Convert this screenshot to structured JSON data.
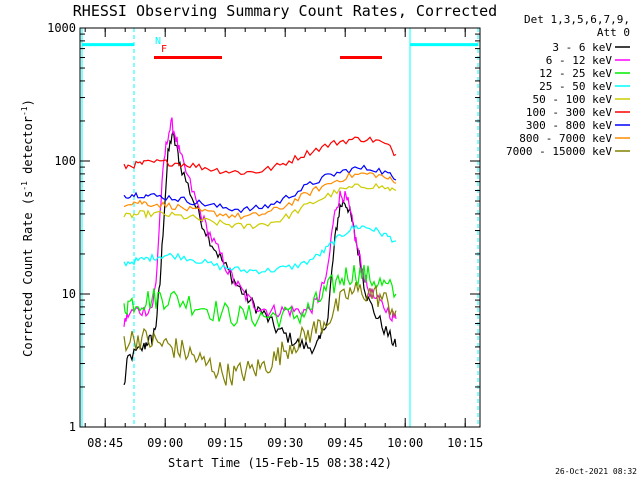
{
  "chart_data": {
    "type": "line",
    "title": "RHESSI Observing Summary Count Rates, Corrected",
    "xlabel": "Start Time (15-Feb-15 08:38:42)",
    "ylabel": "Corrected Count Rate (s",
    "ylabel_sup1": "-1",
    "ylabel_mid": " detector",
    "ylabel_sup2": "-1",
    "ylabel_end": ")",
    "x_unit": "minutes after 08:38:42",
    "xlim": [
      0,
      100
    ],
    "ylim": [
      1,
      1000
    ],
    "yscale": "log",
    "x_ticks": [
      {
        "t": 6.3,
        "label": "08:45"
      },
      {
        "t": 21.3,
        "label": "09:00"
      },
      {
        "t": 36.3,
        "label": "09:15"
      },
      {
        "t": 51.3,
        "label": "09:30"
      },
      {
        "t": 66.3,
        "label": "09:45"
      },
      {
        "t": 81.3,
        "label": "10:00"
      },
      {
        "t": 96.3,
        "label": "10:15"
      }
    ],
    "y_ticks": [
      {
        "v": 1,
        "label": "1"
      },
      {
        "v": 10,
        "label": "10"
      },
      {
        "v": 100,
        "label": "100"
      },
      {
        "v": 1000,
        "label": "1000"
      }
    ],
    "legend_header_1": "Det 1,3,5,6,7,9,",
    "legend_header_2": "Att 0",
    "footer_date": "26-Oct-2021 08:32",
    "series": [
      {
        "name": "3 - 6 keV",
        "color": "#000000",
        "points": [
          [
            11,
            2
          ],
          [
            12,
            3.3
          ],
          [
            14,
            3.6
          ],
          [
            16,
            4
          ],
          [
            17,
            4.5
          ],
          [
            18,
            4.5
          ],
          [
            19,
            6
          ],
          [
            20,
            12
          ],
          [
            21,
            40
          ],
          [
            22,
            110
          ],
          [
            23,
            160
          ],
          [
            24,
            130
          ],
          [
            25,
            95
          ],
          [
            27,
            65
          ],
          [
            29,
            45
          ],
          [
            31,
            32
          ],
          [
            33,
            24
          ],
          [
            35,
            19
          ],
          [
            37,
            15
          ],
          [
            39,
            12
          ],
          [
            41,
            10
          ],
          [
            43,
            8.5
          ],
          [
            45,
            7.5
          ],
          [
            47,
            6.5
          ],
          [
            49,
            5.5
          ],
          [
            51,
            5
          ],
          [
            53,
            4.5
          ],
          [
            55,
            4.2
          ],
          [
            57,
            4
          ],
          [
            59,
            4
          ],
          [
            60,
            4.5
          ],
          [
            62,
            7
          ],
          [
            63,
            15
          ],
          [
            64,
            30
          ],
          [
            65,
            45
          ],
          [
            66,
            50
          ],
          [
            67,
            45
          ],
          [
            68,
            35
          ],
          [
            69,
            25
          ],
          [
            70,
            18
          ],
          [
            71,
            12
          ],
          [
            72,
            9
          ],
          [
            74,
            7
          ],
          [
            76,
            5.5
          ],
          [
            78,
            4.5
          ],
          [
            79,
            4
          ]
        ]
      },
      {
        "name": "6 - 12 keV",
        "color": "#ff00ff",
        "points": [
          [
            11,
            6
          ],
          [
            12,
            7
          ],
          [
            14,
            7.5
          ],
          [
            16,
            7.5
          ],
          [
            18,
            8
          ],
          [
            19,
            12
          ],
          [
            20,
            40
          ],
          [
            21,
            100
          ],
          [
            22,
            160
          ],
          [
            23,
            190
          ],
          [
            24,
            150
          ],
          [
            25,
            110
          ],
          [
            27,
            75
          ],
          [
            29,
            50
          ],
          [
            31,
            35
          ],
          [
            33,
            26
          ],
          [
            35,
            20
          ],
          [
            37,
            15
          ],
          [
            39,
            12
          ],
          [
            41,
            10
          ],
          [
            43,
            8.5
          ],
          [
            45,
            8
          ],
          [
            47,
            7.5
          ],
          [
            49,
            7.5
          ],
          [
            51,
            7.5
          ],
          [
            53,
            7.5
          ],
          [
            55,
            7.5
          ],
          [
            57,
            7.5
          ],
          [
            59,
            8.5
          ],
          [
            60,
            10
          ],
          [
            62,
            15
          ],
          [
            63,
            30
          ],
          [
            64,
            45
          ],
          [
            65,
            55
          ],
          [
            66,
            55
          ],
          [
            67,
            48
          ],
          [
            68,
            35
          ],
          [
            69,
            25
          ],
          [
            70,
            18
          ],
          [
            71,
            14
          ],
          [
            72,
            11
          ],
          [
            74,
            9
          ],
          [
            76,
            8
          ],
          [
            78,
            7
          ],
          [
            79,
            6.5
          ]
        ]
      },
      {
        "name": "12 - 25 keV",
        "color": "#00ee00",
        "points": [
          [
            11,
            8
          ],
          [
            12,
            8.5
          ],
          [
            14,
            8.8
          ],
          [
            16,
            9
          ],
          [
            18,
            9.2
          ],
          [
            20,
            9.5
          ],
          [
            22,
            9.3
          ],
          [
            25,
            9
          ],
          [
            28,
            8.5
          ],
          [
            31,
            8
          ],
          [
            34,
            7.5
          ],
          [
            37,
            7
          ],
          [
            40,
            6.8
          ],
          [
            43,
            6.8
          ],
          [
            46,
            6.8
          ],
          [
            49,
            6.8
          ],
          [
            52,
            6.8
          ],
          [
            55,
            7
          ],
          [
            57,
            7.5
          ],
          [
            59,
            8.5
          ],
          [
            61,
            10
          ],
          [
            63,
            11.5
          ],
          [
            65,
            13
          ],
          [
            67,
            14
          ],
          [
            69,
            14.5
          ],
          [
            71,
            14
          ],
          [
            73,
            13
          ],
          [
            75,
            12
          ],
          [
            77,
            11
          ],
          [
            79,
            10
          ]
        ]
      },
      {
        "name": "25 - 50 keV",
        "color": "#00ffff",
        "points": [
          [
            11,
            17
          ],
          [
            13,
            17.5
          ],
          [
            15,
            18
          ],
          [
            17,
            18.5
          ],
          [
            19,
            19
          ],
          [
            21,
            19.5
          ],
          [
            23,
            19.5
          ],
          [
            26,
            19
          ],
          [
            29,
            18
          ],
          [
            32,
            17
          ],
          [
            35,
            16
          ],
          [
            38,
            15.5
          ],
          [
            41,
            15
          ],
          [
            44,
            15
          ],
          [
            47,
            15
          ],
          [
            50,
            15.5
          ],
          [
            53,
            16
          ],
          [
            56,
            17
          ],
          [
            59,
            19
          ],
          [
            61,
            21
          ],
          [
            63,
            24
          ],
          [
            65,
            27
          ],
          [
            67,
            30
          ],
          [
            69,
            32
          ],
          [
            71,
            32
          ],
          [
            73,
            31
          ],
          [
            75,
            29
          ],
          [
            77,
            27
          ],
          [
            79,
            25
          ]
        ]
      },
      {
        "name": "50 - 100 keV",
        "color": "#cccc00",
        "points": [
          [
            11,
            38
          ],
          [
            13,
            39
          ],
          [
            15,
            40
          ],
          [
            17,
            40
          ],
          [
            20,
            40
          ],
          [
            23,
            39
          ],
          [
            26,
            38
          ],
          [
            29,
            37
          ],
          [
            32,
            35
          ],
          [
            35,
            34
          ],
          [
            38,
            33
          ],
          [
            41,
            32
          ],
          [
            44,
            33
          ],
          [
            47,
            34
          ],
          [
            50,
            36
          ],
          [
            53,
            40
          ],
          [
            56,
            45
          ],
          [
            59,
            50
          ],
          [
            62,
            55
          ],
          [
            65,
            60
          ],
          [
            68,
            63
          ],
          [
            71,
            65
          ],
          [
            74,
            65
          ],
          [
            77,
            62
          ],
          [
            79,
            60
          ]
        ]
      },
      {
        "name": "100 - 300 keV",
        "color": "#ff0000",
        "points": [
          [
            11,
            90
          ],
          [
            13,
            93
          ],
          [
            15,
            95
          ],
          [
            17,
            97
          ],
          [
            20,
            98
          ],
          [
            23,
            97
          ],
          [
            26,
            95
          ],
          [
            29,
            92
          ],
          [
            32,
            88
          ],
          [
            35,
            85
          ],
          [
            38,
            83
          ],
          [
            41,
            82
          ],
          [
            44,
            83
          ],
          [
            47,
            87
          ],
          [
            50,
            93
          ],
          [
            53,
            102
          ],
          [
            56,
            112
          ],
          [
            59,
            122
          ],
          [
            62,
            132
          ],
          [
            65,
            140
          ],
          [
            68,
            145
          ],
          [
            71,
            147
          ],
          [
            74,
            143
          ],
          [
            77,
            130
          ],
          [
            79,
            112
          ]
        ]
      },
      {
        "name": "300 - 800 keV",
        "color": "#0000ff",
        "points": [
          [
            11,
            55
          ],
          [
            13,
            56
          ],
          [
            15,
            56
          ],
          [
            17,
            55
          ],
          [
            20,
            54
          ],
          [
            23,
            53
          ],
          [
            26,
            51
          ],
          [
            29,
            49
          ],
          [
            32,
            47
          ],
          [
            35,
            45
          ],
          [
            38,
            44
          ],
          [
            41,
            43
          ],
          [
            44,
            44
          ],
          [
            47,
            46
          ],
          [
            50,
            50
          ],
          [
            53,
            56
          ],
          [
            56,
            63
          ],
          [
            59,
            70
          ],
          [
            62,
            77
          ],
          [
            65,
            82
          ],
          [
            68,
            87
          ],
          [
            71,
            88
          ],
          [
            74,
            87
          ],
          [
            77,
            80
          ],
          [
            79,
            72
          ]
        ]
      },
      {
        "name": "800 - 7000 keV",
        "color": "#ff8c00",
        "points": [
          [
            11,
            48
          ],
          [
            13,
            49
          ],
          [
            15,
            49
          ],
          [
            17,
            48
          ],
          [
            20,
            47
          ],
          [
            23,
            46
          ],
          [
            26,
            44
          ],
          [
            29,
            42
          ],
          [
            32,
            41
          ],
          [
            35,
            40
          ],
          [
            38,
            39
          ],
          [
            41,
            38
          ],
          [
            44,
            39
          ],
          [
            47,
            41
          ],
          [
            50,
            44
          ],
          [
            53,
            49
          ],
          [
            56,
            55
          ],
          [
            59,
            61
          ],
          [
            62,
            67
          ],
          [
            65,
            73
          ],
          [
            68,
            78
          ],
          [
            71,
            80
          ],
          [
            74,
            79
          ],
          [
            77,
            74
          ],
          [
            79,
            68
          ]
        ]
      },
      {
        "name": "7000 - 15000 keV",
        "color": "#808000",
        "points": [
          [
            11,
            4.5
          ],
          [
            13,
            4.6
          ],
          [
            15,
            4.7
          ],
          [
            17,
            4.5
          ],
          [
            19,
            4.3
          ],
          [
            21,
            4.2
          ],
          [
            23,
            4.0
          ],
          [
            25,
            3.8
          ],
          [
            27,
            3.6
          ],
          [
            29,
            3.3
          ],
          [
            31,
            3.0
          ],
          [
            33,
            2.9
          ],
          [
            35,
            2.6
          ],
          [
            37,
            2.5
          ],
          [
            39,
            2.5
          ],
          [
            41,
            2.6
          ],
          [
            43,
            2.7
          ],
          [
            45,
            2.8
          ],
          [
            47,
            3.0
          ],
          [
            49,
            3.3
          ],
          [
            51,
            3.8
          ],
          [
            53,
            4.2
          ],
          [
            55,
            4.5
          ],
          [
            57,
            5.0
          ],
          [
            59,
            5.5
          ],
          [
            61,
            6.2
          ],
          [
            63,
            7.0
          ],
          [
            65,
            8.5
          ],
          [
            67,
            10
          ],
          [
            69,
            10.5
          ],
          [
            71,
            10.5
          ],
          [
            73,
            10
          ],
          [
            75,
            9.5
          ],
          [
            77,
            8.5
          ],
          [
            79,
            7.5
          ]
        ]
      }
    ],
    "annotations": [
      {
        "type": "cyan-bar",
        "t0": 0.5,
        "t1": 13.5,
        "v": 750
      },
      {
        "type": "cyan-bar",
        "t0": 82.5,
        "t1": 99.5,
        "v": 750
      },
      {
        "type": "cyan-vline-solid",
        "t": 0.5
      },
      {
        "type": "cyan-vline-solid",
        "t": 82.5
      },
      {
        "type": "cyan-vline-dash",
        "t": 13.5
      },
      {
        "type": "cyan-vline-dash",
        "t": 99.5
      },
      {
        "type": "red-bar",
        "t0": 18.5,
        "t1": 35.5,
        "v": 600
      },
      {
        "type": "red-bar",
        "t0": 65,
        "t1": 75.5,
        "v": 600
      }
    ],
    "marker_N": "N",
    "marker_F": "F"
  }
}
